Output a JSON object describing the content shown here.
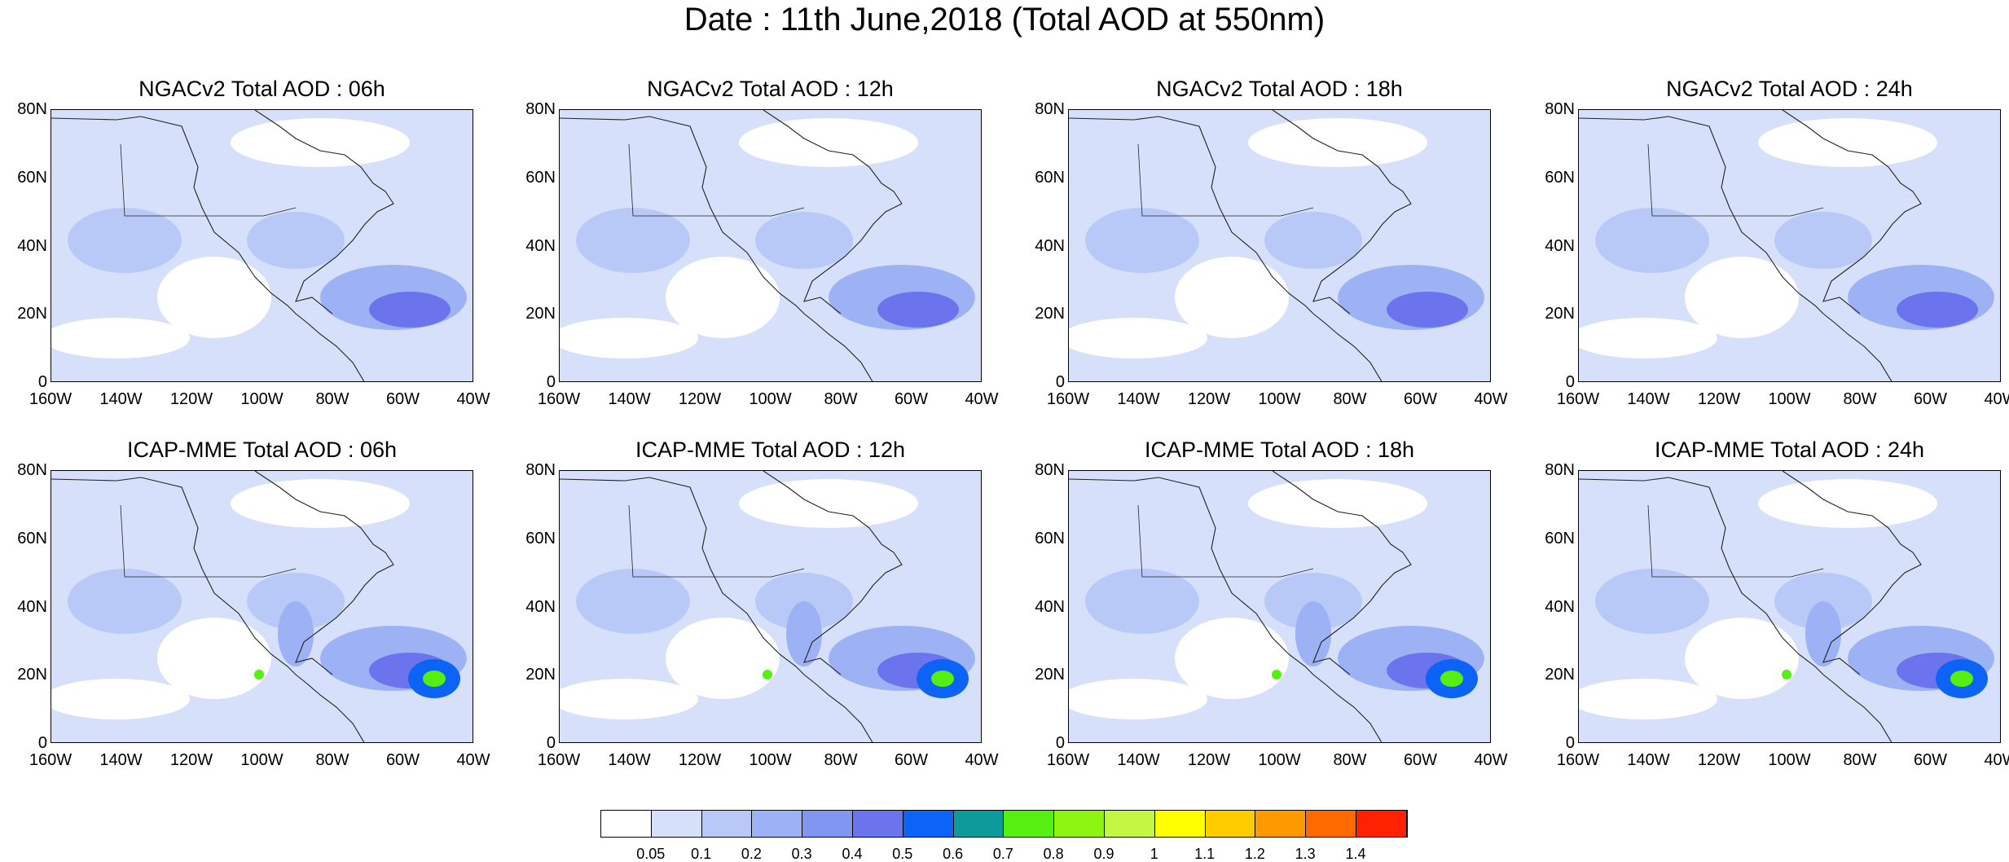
{
  "title": "Date : 11th June,2018 (Total AOD at 550nm)",
  "panels": [
    {
      "title": "NGACv2 Total AOD : 06h",
      "model": "NGACv2"
    },
    {
      "title": "NGACv2 Total AOD : 12h",
      "model": "NGACv2"
    },
    {
      "title": "NGACv2 Total AOD : 18h",
      "model": "NGACv2"
    },
    {
      "title": "NGACv2 Total AOD : 24h",
      "model": "NGACv2"
    },
    {
      "title": "ICAP-MME Total AOD : 06h",
      "model": "ICAP-MME"
    },
    {
      "title": "ICAP-MME Total AOD : 12h",
      "model": "ICAP-MME"
    },
    {
      "title": "ICAP-MME Total AOD : 18h",
      "model": "ICAP-MME"
    },
    {
      "title": "ICAP-MME Total AOD : 24h",
      "model": "ICAP-MME"
    }
  ],
  "lat_labels": [
    "80N",
    "60N",
    "40N",
    "20N",
    "0"
  ],
  "lon_labels": [
    "160W",
    "140W",
    "120W",
    "100W",
    "80W",
    "60W",
    "40W"
  ],
  "colorbar": {
    "labels": [
      "0.05",
      "0.1",
      "0.2",
      "0.3",
      "0.4",
      "0.5",
      "0.6",
      "0.7",
      "0.8",
      "0.9",
      "1",
      "1.1",
      "1.2",
      "1.3",
      "1.4"
    ],
    "colors": [
      "#ffffff",
      "#d6e0fb",
      "#b9c9f7",
      "#9db2f4",
      "#8196f1",
      "#6b74ed",
      "#0d63f5",
      "#0d9a9a",
      "#55ef11",
      "#8ef411",
      "#c4f744",
      "#ffff00",
      "#ffcc00",
      "#ff9900",
      "#ff6a00",
      "#ff2200"
    ]
  }
}
